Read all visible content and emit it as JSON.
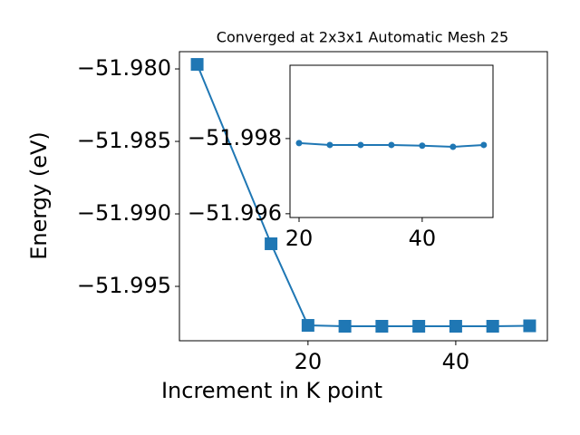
{
  "chart_data": [
    {
      "type": "line",
      "title": "Converged at 2x3x1 Automatic Mesh 25",
      "x_label": "Increment in K point",
      "y_label": "Energy (eV)",
      "x": [
        5,
        15,
        20,
        25,
        30,
        35,
        40,
        45,
        50
      ],
      "series": [
        {
          "color": "#1f77b4",
          "marker": "square",
          "values": [
            -51.97969,
            -51.99206,
            -51.99769,
            -51.99775,
            -51.99775,
            -51.99775,
            -51.99775,
            -51.99775,
            -51.99772
          ]
        }
      ],
      "xlim": [
        2.6,
        52.4
      ],
      "ylim": [
        -51.99875,
        -51.97881
      ],
      "xticks": [
        20,
        40
      ],
      "yticks": [
        {
          "value": -51.98,
          "label": "−51.980"
        },
        {
          "value": -51.985,
          "label": "−51.985"
        },
        {
          "value": -51.99,
          "label": "−51.990"
        },
        {
          "value": -51.995,
          "label": "−51.995"
        }
      ]
    },
    {
      "type": "line",
      "x": [
        20,
        25,
        30,
        35,
        40,
        45,
        50
      ],
      "series": [
        {
          "color": "#1f77b4",
          "marker": "circle",
          "values": [
            -51.99788,
            -51.99783,
            -51.99783,
            -51.99783,
            -51.99781,
            -51.99778,
            -51.99783
          ]
        }
      ],
      "xlim": [
        18.53,
        51.5
      ],
      "ylim": [
        -51.9959,
        -51.99995
      ],
      "xticks": [
        20,
        40
      ],
      "yticks": [
        {
          "value": -51.998,
          "label": "−51.998"
        },
        {
          "value": -51.996,
          "label": "−51.996"
        }
      ]
    }
  ]
}
